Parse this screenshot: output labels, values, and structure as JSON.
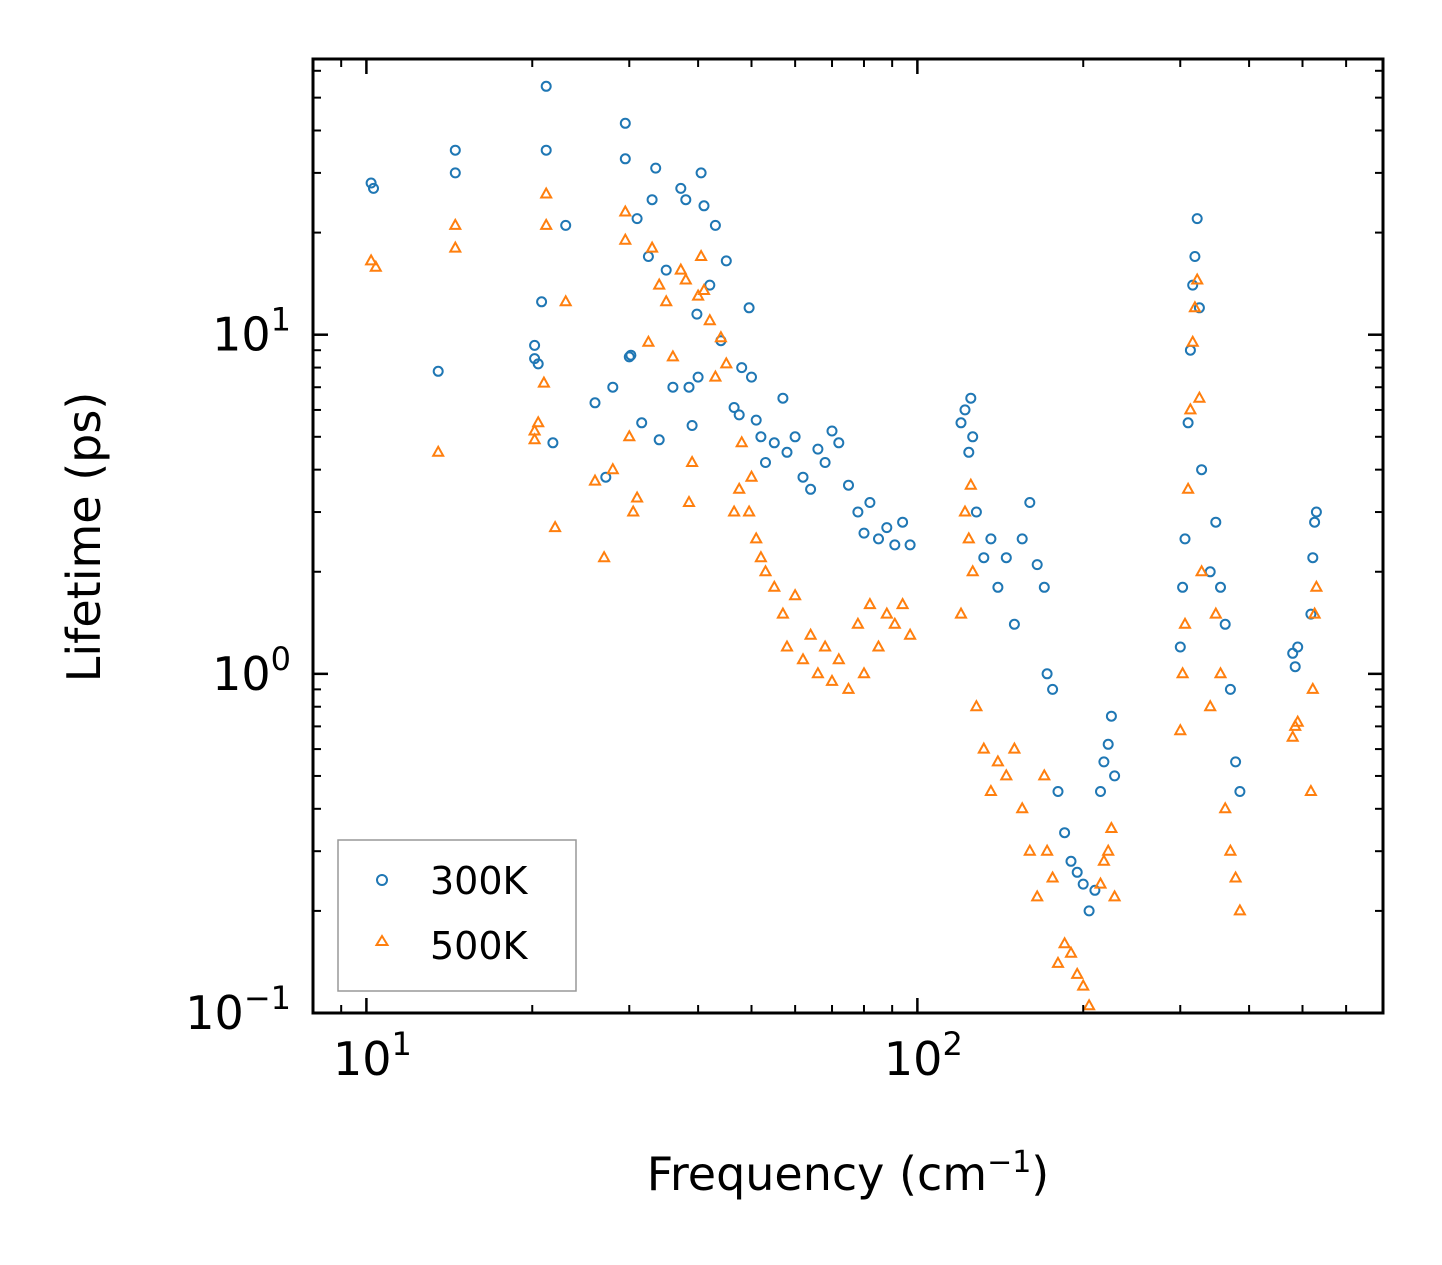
{
  "chart_data": {
    "type": "scatter",
    "title": "",
    "xlabel": "Frequency (cm",
    "xlabel_sup": "−1",
    "xlabel_suffix": ")",
    "ylabel": "Lifetime (ps)",
    "xscale": "log",
    "yscale": "log",
    "xlim": [
      8,
      700
    ],
    "ylim": [
      0.1,
      65
    ],
    "x_ticks": [
      {
        "value": 10,
        "base": "10",
        "exp": "1"
      },
      {
        "value": 100,
        "base": "10",
        "exp": "2"
      }
    ],
    "y_ticks": [
      {
        "value": 0.1,
        "base": "10",
        "exp": "−1"
      },
      {
        "value": 1,
        "base": "10",
        "exp": "0"
      },
      {
        "value": 10,
        "base": "10",
        "exp": "1"
      }
    ],
    "legend": {
      "position": "lower-left"
    },
    "series": [
      {
        "name": "300K",
        "marker": "circle",
        "color": "#1f77b4",
        "points": [
          [
            10.2,
            28
          ],
          [
            10.3,
            27
          ],
          [
            13.5,
            7.8
          ],
          [
            14.5,
            35
          ],
          [
            14.5,
            30
          ],
          [
            20.2,
            9.3
          ],
          [
            20.2,
            8.5
          ],
          [
            20.5,
            8.2
          ],
          [
            20.8,
            12.5
          ],
          [
            21.2,
            54
          ],
          [
            21.2,
            35
          ],
          [
            21.8,
            4.8
          ],
          [
            23.0,
            21
          ],
          [
            26.0,
            6.3
          ],
          [
            27.2,
            3.8
          ],
          [
            28.0,
            7.0
          ],
          [
            29.5,
            42
          ],
          [
            29.5,
            33
          ],
          [
            30.0,
            8.6
          ],
          [
            30.2,
            8.7
          ],
          [
            31.0,
            22
          ],
          [
            31.6,
            5.5
          ],
          [
            32.5,
            17
          ],
          [
            33.0,
            25
          ],
          [
            33.5,
            31
          ],
          [
            34.0,
            4.9
          ],
          [
            35.0,
            15.5
          ],
          [
            36.0,
            7.0
          ],
          [
            37.2,
            27
          ],
          [
            38.0,
            25
          ],
          [
            38.5,
            7.0
          ],
          [
            39.0,
            5.4
          ],
          [
            39.8,
            11.5
          ],
          [
            40.0,
            7.5
          ],
          [
            40.5,
            30
          ],
          [
            41.0,
            24
          ],
          [
            42.0,
            14.0
          ],
          [
            43.0,
            21
          ],
          [
            44.0,
            9.6
          ],
          [
            45.0,
            16.5
          ],
          [
            46.5,
            6.1
          ],
          [
            47.5,
            5.8
          ],
          [
            48.0,
            8.0
          ],
          [
            49.5,
            12.0
          ],
          [
            50.0,
            7.5
          ],
          [
            51.0,
            5.6
          ],
          [
            52.0,
            5.0
          ],
          [
            53.0,
            4.2
          ],
          [
            55.0,
            4.8
          ],
          [
            57.0,
            6.5
          ],
          [
            58.0,
            4.5
          ],
          [
            60.0,
            5.0
          ],
          [
            62.0,
            3.8
          ],
          [
            64.0,
            3.5
          ],
          [
            66.0,
            4.6
          ],
          [
            68.0,
            4.2
          ],
          [
            70.0,
            5.2
          ],
          [
            72.0,
            4.8
          ],
          [
            75.0,
            3.6
          ],
          [
            78.0,
            3.0
          ],
          [
            80.0,
            2.6
          ],
          [
            82.0,
            3.2
          ],
          [
            85.0,
            2.5
          ],
          [
            88.0,
            2.7
          ],
          [
            91.0,
            2.4
          ],
          [
            94.0,
            2.8
          ],
          [
            97.0,
            2.4
          ],
          [
            120.0,
            5.5
          ],
          [
            122.0,
            6.0
          ],
          [
            124.0,
            4.5
          ],
          [
            125.0,
            6.5
          ],
          [
            126.0,
            5.0
          ],
          [
            128.0,
            3.0
          ],
          [
            132.0,
            2.2
          ],
          [
            136.0,
            2.5
          ],
          [
            140.0,
            1.8
          ],
          [
            145.0,
            2.2
          ],
          [
            150.0,
            1.4
          ],
          [
            155.0,
            2.5
          ],
          [
            160.0,
            3.2
          ],
          [
            165.0,
            2.1
          ],
          [
            170.0,
            1.8
          ],
          [
            172.0,
            1.0
          ],
          [
            176.0,
            0.9
          ],
          [
            180.0,
            0.45
          ],
          [
            185.0,
            0.34
          ],
          [
            190.0,
            0.28
          ],
          [
            195.0,
            0.26
          ],
          [
            200.0,
            0.24
          ],
          [
            205.0,
            0.2
          ],
          [
            210.0,
            0.23
          ],
          [
            215.0,
            0.45
          ],
          [
            218.0,
            0.55
          ],
          [
            222.0,
            0.62
          ],
          [
            225.0,
            0.75
          ],
          [
            228.0,
            0.5
          ],
          [
            300.0,
            1.2
          ],
          [
            303.0,
            1.8
          ],
          [
            306.0,
            2.5
          ],
          [
            310.0,
            5.5
          ],
          [
            313.0,
            9.0
          ],
          [
            316.0,
            14.0
          ],
          [
            319.0,
            17.0
          ],
          [
            322.0,
            22.0
          ],
          [
            325.0,
            12.0
          ],
          [
            328.0,
            4.0
          ],
          [
            340.0,
            2.0
          ],
          [
            348.0,
            2.8
          ],
          [
            355.0,
            1.8
          ],
          [
            362.0,
            1.4
          ],
          [
            370.0,
            0.9
          ],
          [
            378.0,
            0.55
          ],
          [
            385.0,
            0.45
          ],
          [
            480.0,
            1.15
          ],
          [
            485.0,
            1.05
          ],
          [
            490.0,
            1.2
          ],
          [
            518.0,
            1.5
          ],
          [
            522.0,
            2.2
          ],
          [
            526.0,
            2.8
          ],
          [
            530.0,
            3.0
          ]
        ]
      },
      {
        "name": "500K",
        "marker": "triangle",
        "color": "#ff7f0e",
        "points": [
          [
            10.2,
            16.5
          ],
          [
            10.4,
            15.8
          ],
          [
            13.5,
            4.5
          ],
          [
            14.5,
            21
          ],
          [
            14.5,
            18
          ],
          [
            20.2,
            5.2
          ],
          [
            20.2,
            4.9
          ],
          [
            20.5,
            5.5
          ],
          [
            21.0,
            7.2
          ],
          [
            21.2,
            21
          ],
          [
            21.2,
            26
          ],
          [
            22.0,
            2.7
          ],
          [
            23.0,
            12.5
          ],
          [
            26.0,
            3.7
          ],
          [
            27.0,
            2.2
          ],
          [
            28.0,
            4.0
          ],
          [
            29.5,
            23
          ],
          [
            29.5,
            19
          ],
          [
            30.0,
            5.0
          ],
          [
            30.5,
            3.0
          ],
          [
            31.0,
            3.3
          ],
          [
            32.5,
            9.5
          ],
          [
            33.0,
            18
          ],
          [
            34.0,
            14
          ],
          [
            35.0,
            12.5
          ],
          [
            36.0,
            8.6
          ],
          [
            37.2,
            15.5
          ],
          [
            38.0,
            14.5
          ],
          [
            38.5,
            3.2
          ],
          [
            39.0,
            4.2
          ],
          [
            40.0,
            13.0
          ],
          [
            40.5,
            17
          ],
          [
            41.0,
            13.5
          ],
          [
            42.0,
            11.0
          ],
          [
            43.0,
            7.5
          ],
          [
            44.0,
            9.8
          ],
          [
            45.0,
            8.2
          ],
          [
            46.5,
            3.0
          ],
          [
            47.5,
            3.5
          ],
          [
            48.0,
            4.8
          ],
          [
            49.5,
            3.0
          ],
          [
            50.0,
            3.8
          ],
          [
            51.0,
            2.5
          ],
          [
            52.0,
            2.2
          ],
          [
            53.0,
            2.0
          ],
          [
            55.0,
            1.8
          ],
          [
            57.0,
            1.5
          ],
          [
            58.0,
            1.2
          ],
          [
            60.0,
            1.7
          ],
          [
            62.0,
            1.1
          ],
          [
            64.0,
            1.3
          ],
          [
            66.0,
            1.0
          ],
          [
            68.0,
            1.2
          ],
          [
            70.0,
            0.95
          ],
          [
            72.0,
            1.1
          ],
          [
            75.0,
            0.9
          ],
          [
            78.0,
            1.4
          ],
          [
            80.0,
            1.0
          ],
          [
            82.0,
            1.6
          ],
          [
            85.0,
            1.2
          ],
          [
            88.0,
            1.5
          ],
          [
            91.0,
            1.4
          ],
          [
            94.0,
            1.6
          ],
          [
            97.0,
            1.3
          ],
          [
            120.0,
            1.5
          ],
          [
            122.0,
            3.0
          ],
          [
            124.0,
            2.5
          ],
          [
            125.0,
            3.6
          ],
          [
            126.0,
            2.0
          ],
          [
            128.0,
            0.8
          ],
          [
            132.0,
            0.6
          ],
          [
            136.0,
            0.45
          ],
          [
            140.0,
            0.55
          ],
          [
            145.0,
            0.5
          ],
          [
            150.0,
            0.6
          ],
          [
            155.0,
            0.4
          ],
          [
            160.0,
            0.3
          ],
          [
            165.0,
            0.22
          ],
          [
            170.0,
            0.5
          ],
          [
            172.0,
            0.3
          ],
          [
            176.0,
            0.25
          ],
          [
            180.0,
            0.14
          ],
          [
            185.0,
            0.16
          ],
          [
            190.0,
            0.15
          ],
          [
            195.0,
            0.13
          ],
          [
            200.0,
            0.12
          ],
          [
            205.0,
            0.105
          ],
          [
            215.0,
            0.24
          ],
          [
            218.0,
            0.28
          ],
          [
            222.0,
            0.3
          ],
          [
            225.0,
            0.35
          ],
          [
            228.0,
            0.22
          ],
          [
            300.0,
            0.68
          ],
          [
            303.0,
            1.0
          ],
          [
            306.0,
            1.4
          ],
          [
            310.0,
            3.5
          ],
          [
            313.0,
            6.0
          ],
          [
            316.0,
            9.5
          ],
          [
            319.0,
            12.0
          ],
          [
            322.0,
            14.5
          ],
          [
            325.0,
            6.5
          ],
          [
            328.0,
            2.0
          ],
          [
            340.0,
            0.8
          ],
          [
            348.0,
            1.5
          ],
          [
            355.0,
            1.0
          ],
          [
            362.0,
            0.4
          ],
          [
            370.0,
            0.3
          ],
          [
            378.0,
            0.25
          ],
          [
            385.0,
            0.2
          ],
          [
            480.0,
            0.65
          ],
          [
            485.0,
            0.7
          ],
          [
            490.0,
            0.72
          ],
          [
            518.0,
            0.45
          ],
          [
            522.0,
            0.9
          ],
          [
            526.0,
            1.5
          ],
          [
            530.0,
            1.8
          ]
        ]
      }
    ]
  }
}
